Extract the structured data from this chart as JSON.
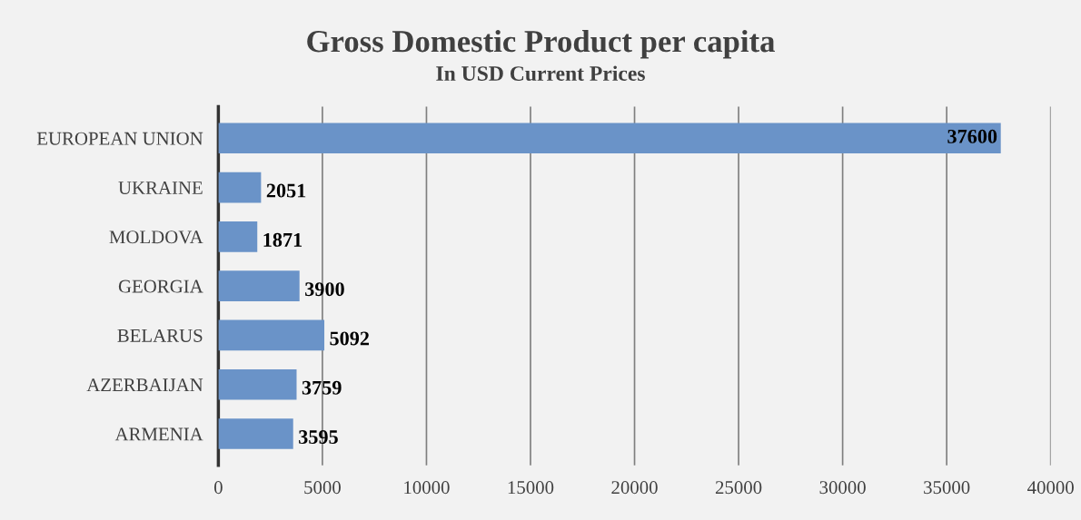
{
  "chart_data": {
    "type": "bar",
    "orientation": "horizontal",
    "title": "Gross Domestic Product per capita",
    "subtitle": "In USD Current Prices",
    "categories": [
      "EUROPEAN UNION",
      "UKRAINE",
      "MOLDOVA",
      "GEORGIA",
      "BELARUS",
      "AZERBAIJAN",
      "ARMENIA"
    ],
    "values": [
      37600,
      2051,
      1871,
      3900,
      5092,
      3759,
      3595
    ],
    "color": "#6a93c8",
    "xlim": [
      0,
      40000
    ],
    "xticks": [
      0,
      5000,
      10000,
      15000,
      20000,
      25000,
      30000,
      35000,
      40000
    ],
    "grid": "x",
    "data_labels": true
  }
}
